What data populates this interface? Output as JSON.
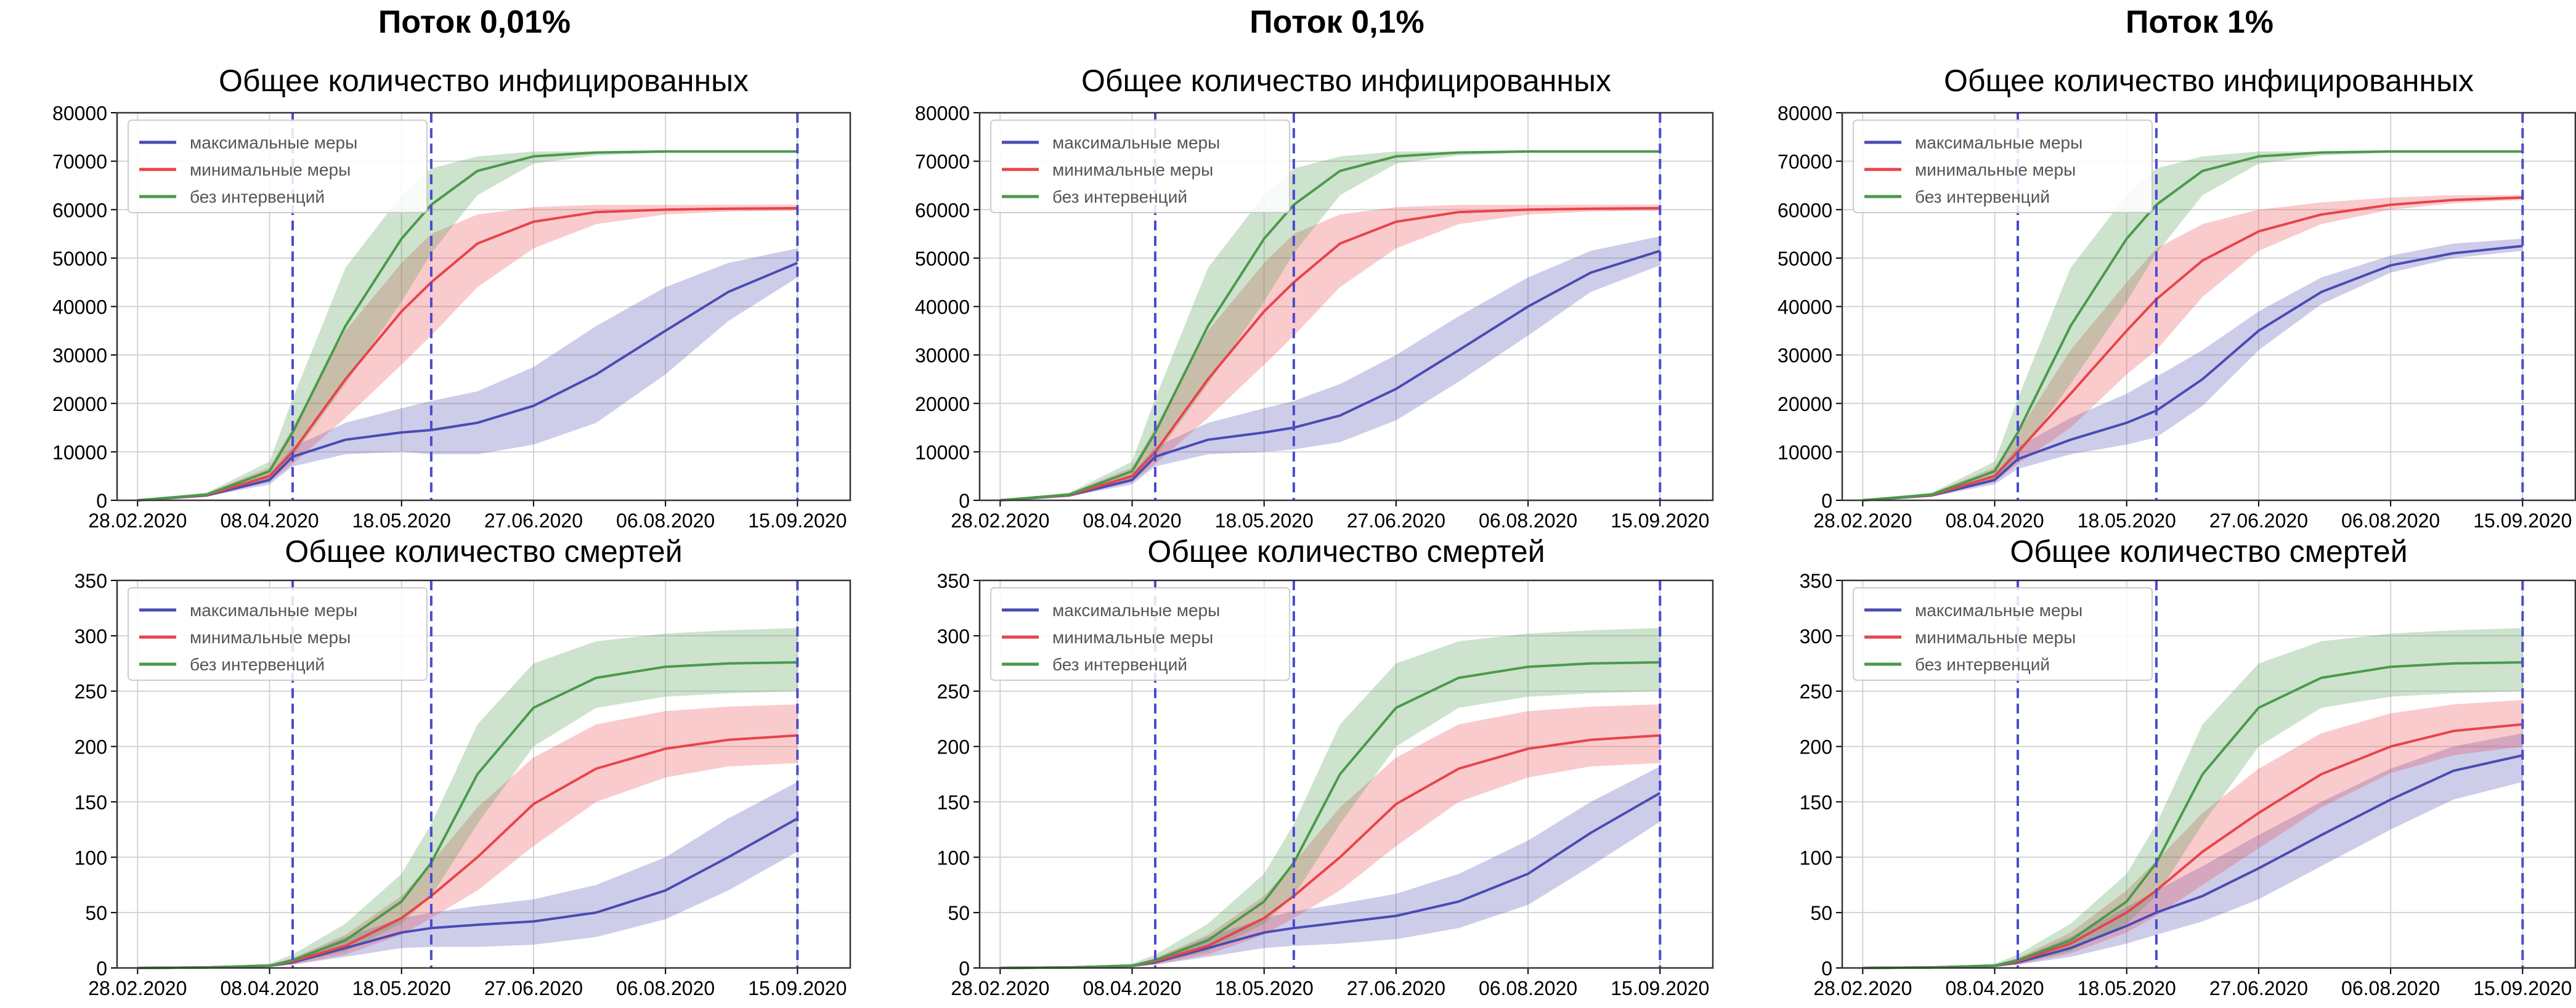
{
  "figure": {
    "columns": [
      "Поток 0,01%",
      "Поток 0,1%",
      "Поток 1%"
    ],
    "panel_titles": [
      "Общее количество инфицированных",
      "Общее количество смертей"
    ],
    "legend": [
      "максимальные меры",
      "минимальные меры",
      "без интервенций"
    ],
    "colors": {
      "max": "#4b4bb4",
      "min": "#e8434b",
      "none": "#4a9a4a",
      "vline": "#4b4bd0"
    },
    "x_ticks": [
      "28.02.2020",
      "08.04.2020",
      "18.05.2020",
      "27.06.2020",
      "06.08.2020",
      "15.09.2020"
    ],
    "x_dashed_lines": [
      "15.04.2020",
      "27.05.2020",
      "15.09.2020"
    ]
  },
  "chart_data": [
    {
      "type": "line",
      "column": "Поток 0,01%",
      "title": "Общее количество инфицированных",
      "ylim": [
        0,
        80000
      ],
      "y_ticks": [
        0,
        10000,
        20000,
        30000,
        40000,
        50000,
        60000,
        70000,
        80000
      ],
      "x": [
        "28.02.2020",
        "20.03.2020",
        "08.04.2020",
        "15.04.2020",
        "01.05.2020",
        "18.05.2020",
        "27.05.2020",
        "10.06.2020",
        "27.06.2020",
        "16.07.2020",
        "06.08.2020",
        "25.08.2020",
        "15.09.2020"
      ],
      "series": [
        {
          "name": "максимальные меры",
          "values": [
            0,
            1000,
            4200,
            9000,
            12500,
            14000,
            14500,
            16000,
            19500,
            26000,
            35000,
            43000,
            49000
          ],
          "lower": [
            0,
            800,
            3300,
            7000,
            9500,
            10000,
            9500,
            9500,
            11500,
            16000,
            26000,
            37000,
            46000
          ],
          "upper": [
            0,
            1300,
            5400,
            11000,
            16000,
            19000,
            20500,
            22500,
            27500,
            36000,
            44000,
            49000,
            52000
          ]
        },
        {
          "name": "минимальные меры",
          "values": [
            0,
            1100,
            5000,
            10000,
            25000,
            39000,
            45000,
            53000,
            57500,
            59500,
            60000,
            60200,
            60300
          ],
          "lower": [
            0,
            900,
            3800,
            7500,
            17000,
            28000,
            34000,
            44000,
            52000,
            57000,
            59000,
            59600,
            59800
          ],
          "upper": [
            0,
            1500,
            6800,
            15000,
            35000,
            49000,
            55000,
            59000,
            60500,
            61000,
            61000,
            61000,
            61000
          ]
        },
        {
          "name": "без интервенций",
          "values": [
            0,
            1200,
            6000,
            14000,
            36000,
            54000,
            61000,
            68000,
            71000,
            71800,
            72000,
            72000,
            72000
          ],
          "lower": [
            0,
            900,
            4200,
            9000,
            24000,
            41000,
            51000,
            63000,
            69500,
            71200,
            71800,
            71900,
            72000
          ],
          "upper": [
            0,
            1600,
            8000,
            21000,
            48000,
            63000,
            68500,
            71000,
            72000,
            72000,
            72000,
            72000,
            72000
          ]
        }
      ]
    },
    {
      "type": "line",
      "column": "Поток 0,1%",
      "title": "Общее количество инфицированных",
      "ylim": [
        0,
        80000
      ],
      "y_ticks": [
        0,
        10000,
        20000,
        30000,
        40000,
        50000,
        60000,
        70000,
        80000
      ],
      "x": [
        "28.02.2020",
        "20.03.2020",
        "08.04.2020",
        "15.04.2020",
        "01.05.2020",
        "18.05.2020",
        "27.05.2020",
        "10.06.2020",
        "27.06.2020",
        "16.07.2020",
        "06.08.2020",
        "25.08.2020",
        "15.09.2020"
      ],
      "series": [
        {
          "name": "максимальные меры",
          "values": [
            0,
            1000,
            4200,
            9000,
            12500,
            14000,
            15000,
            17500,
            23000,
            31000,
            40000,
            47000,
            51500
          ],
          "lower": [
            0,
            800,
            3300,
            7000,
            9500,
            10000,
            10500,
            12000,
            16500,
            24500,
            34000,
            43000,
            48500
          ],
          "upper": [
            0,
            1300,
            5400,
            11000,
            16000,
            19000,
            20500,
            24000,
            30000,
            38000,
            46000,
            51500,
            54500
          ]
        },
        {
          "name": "минимальные меры",
          "values": [
            0,
            1100,
            5000,
            10000,
            25000,
            39000,
            45000,
            53000,
            57500,
            59500,
            60000,
            60200,
            60300
          ],
          "lower": [
            0,
            900,
            3800,
            7500,
            17000,
            28000,
            34000,
            44000,
            52000,
            57000,
            59000,
            59600,
            59800
          ],
          "upper": [
            0,
            1500,
            6800,
            15000,
            35000,
            49000,
            55000,
            59000,
            60500,
            61000,
            61000,
            61000,
            61000
          ]
        },
        {
          "name": "без интервенций",
          "values": [
            0,
            1200,
            6000,
            14000,
            36000,
            54000,
            61000,
            68000,
            71000,
            71800,
            72000,
            72000,
            72000
          ],
          "lower": [
            0,
            900,
            4200,
            9000,
            24000,
            41000,
            51000,
            63000,
            69500,
            71200,
            71800,
            71900,
            72000
          ],
          "upper": [
            0,
            1600,
            8000,
            21000,
            48000,
            63000,
            68500,
            71000,
            72000,
            72000,
            72000,
            72000,
            72000
          ]
        }
      ]
    },
    {
      "type": "line",
      "column": "Поток 1%",
      "title": "Общее количество инфицированных",
      "ylim": [
        0,
        80000
      ],
      "y_ticks": [
        0,
        10000,
        20000,
        30000,
        40000,
        50000,
        60000,
        70000,
        80000
      ],
      "x": [
        "28.02.2020",
        "20.03.2020",
        "08.04.2020",
        "15.04.2020",
        "01.05.2020",
        "18.05.2020",
        "27.05.2020",
        "10.06.2020",
        "27.06.2020",
        "16.07.2020",
        "06.08.2020",
        "25.08.2020",
        "15.09.2020"
      ],
      "series": [
        {
          "name": "максимальные меры",
          "values": [
            0,
            1000,
            4200,
            8500,
            12500,
            16000,
            18500,
            25000,
            35000,
            43000,
            48500,
            51000,
            52500
          ],
          "lower": [
            0,
            800,
            3300,
            6500,
            9500,
            11500,
            13000,
            19500,
            31000,
            40500,
            47000,
            50000,
            51500
          ],
          "upper": [
            0,
            1300,
            5400,
            11000,
            17000,
            22000,
            25500,
            31000,
            39000,
            46000,
            50500,
            53000,
            54000
          ]
        },
        {
          "name": "минимальные меры",
          "values": [
            0,
            1100,
            5000,
            10000,
            22000,
            35000,
            41500,
            49500,
            55500,
            59000,
            61000,
            62000,
            62500
          ],
          "lower": [
            0,
            900,
            3800,
            7500,
            15000,
            26000,
            31000,
            42000,
            51500,
            57000,
            60000,
            61300,
            62000
          ],
          "upper": [
            0,
            1500,
            6800,
            14000,
            31000,
            45000,
            52000,
            57000,
            60000,
            61500,
            62500,
            63000,
            63000
          ]
        },
        {
          "name": "без интервенций",
          "values": [
            0,
            1200,
            6000,
            14000,
            36000,
            54000,
            61000,
            68000,
            71000,
            71800,
            72000,
            72000,
            72000
          ],
          "lower": [
            0,
            900,
            4200,
            9000,
            24000,
            41000,
            51000,
            63000,
            69500,
            71200,
            71800,
            71900,
            72000
          ],
          "upper": [
            0,
            1600,
            8000,
            21000,
            48000,
            63000,
            68500,
            71000,
            72000,
            72000,
            72000,
            72000,
            72000
          ]
        }
      ]
    },
    {
      "type": "line",
      "column": "Поток 0,01%",
      "title": "Общее количество смертей",
      "ylim": [
        0,
        350
      ],
      "y_ticks": [
        0,
        50,
        100,
        150,
        200,
        250,
        300,
        350
      ],
      "x": [
        "28.02.2020",
        "20.03.2020",
        "08.04.2020",
        "15.04.2020",
        "01.05.2020",
        "18.05.2020",
        "27.05.2020",
        "10.06.2020",
        "27.06.2020",
        "16.07.2020",
        "06.08.2020",
        "25.08.2020",
        "15.09.2020"
      ],
      "series": [
        {
          "name": "максимальные меры",
          "values": [
            0,
            0.5,
            2,
            5,
            18,
            32,
            36,
            39,
            42,
            50,
            70,
            100,
            135
          ],
          "lower": [
            0,
            0.3,
            1,
            3,
            10,
            18,
            19,
            19,
            21,
            28,
            44,
            70,
            105
          ],
          "upper": [
            0,
            0.8,
            3,
            8,
            28,
            45,
            50,
            56,
            62,
            75,
            100,
            135,
            168
          ]
        },
        {
          "name": "минимальные меры",
          "values": [
            0,
            0.5,
            2,
            6,
            20,
            45,
            65,
            100,
            148,
            180,
            198,
            206,
            210
          ],
          "lower": [
            0,
            0.3,
            1,
            3,
            12,
            30,
            45,
            70,
            110,
            150,
            172,
            182,
            185
          ],
          "upper": [
            0,
            0.8,
            3,
            9,
            30,
            65,
            95,
            145,
            190,
            220,
            232,
            236,
            238
          ]
        },
        {
          "name": "без интервенций",
          "values": [
            0,
            0.5,
            2,
            7,
            25,
            60,
            95,
            175,
            235,
            262,
            272,
            275,
            276
          ],
          "lower": [
            0,
            0.3,
            1,
            4,
            15,
            40,
            65,
            130,
            200,
            235,
            245,
            248,
            250
          ],
          "upper": [
            0,
            0.8,
            4,
            12,
            40,
            85,
            130,
            220,
            275,
            295,
            302,
            305,
            307
          ]
        }
      ]
    },
    {
      "type": "line",
      "column": "Поток 0,1%",
      "title": "Общее количество смертей",
      "ylim": [
        0,
        350
      ],
      "y_ticks": [
        0,
        50,
        100,
        150,
        200,
        250,
        300,
        350
      ],
      "x": [
        "28.02.2020",
        "20.03.2020",
        "08.04.2020",
        "15.04.2020",
        "01.05.2020",
        "18.05.2020",
        "27.05.2020",
        "10.06.2020",
        "27.06.2020",
        "16.07.2020",
        "06.08.2020",
        "25.08.2020",
        "15.09.2020"
      ],
      "series": [
        {
          "name": "максимальные меры",
          "values": [
            0,
            0.5,
            2,
            5,
            18,
            32,
            36,
            41,
            47,
            60,
            85,
            122,
            158
          ],
          "lower": [
            0,
            0.3,
            1,
            3,
            10,
            18,
            20,
            22,
            26,
            36,
            57,
            92,
            132
          ],
          "upper": [
            0,
            0.8,
            3,
            8,
            28,
            45,
            51,
            58,
            67,
            85,
            115,
            150,
            182
          ]
        },
        {
          "name": "минимальные меры",
          "values": [
            0,
            0.5,
            2,
            6,
            20,
            45,
            65,
            100,
            148,
            180,
            198,
            206,
            210
          ],
          "lower": [
            0,
            0.3,
            1,
            3,
            12,
            30,
            45,
            70,
            110,
            150,
            172,
            182,
            185
          ],
          "upper": [
            0,
            0.8,
            3,
            9,
            30,
            65,
            95,
            145,
            190,
            220,
            232,
            236,
            238
          ]
        },
        {
          "name": "без интервенций",
          "values": [
            0,
            0.5,
            2,
            7,
            25,
            60,
            95,
            175,
            235,
            262,
            272,
            275,
            276
          ],
          "lower": [
            0,
            0.3,
            1,
            4,
            15,
            40,
            65,
            130,
            200,
            235,
            245,
            248,
            250
          ],
          "upper": [
            0,
            0.8,
            4,
            12,
            40,
            85,
            130,
            220,
            275,
            295,
            302,
            305,
            307
          ]
        }
      ]
    },
    {
      "type": "line",
      "column": "Поток 1%",
      "title": "Общее количество смертей",
      "ylim": [
        0,
        350
      ],
      "y_ticks": [
        0,
        50,
        100,
        150,
        200,
        250,
        300,
        350
      ],
      "x": [
        "28.02.2020",
        "20.03.2020",
        "08.04.2020",
        "15.04.2020",
        "01.05.2020",
        "18.05.2020",
        "27.05.2020",
        "10.06.2020",
        "27.06.2020",
        "16.07.2020",
        "06.08.2020",
        "25.08.2020",
        "15.09.2020"
      ],
      "series": [
        {
          "name": "максимальные меры",
          "values": [
            0,
            0.5,
            2,
            5,
            18,
            38,
            50,
            65,
            90,
            120,
            152,
            178,
            192
          ],
          "lower": [
            0,
            0.3,
            1,
            3,
            10,
            22,
            30,
            42,
            62,
            92,
            125,
            152,
            168
          ],
          "upper": [
            0,
            0.8,
            3,
            8,
            28,
            55,
            70,
            92,
            120,
            150,
            180,
            200,
            212
          ]
        },
        {
          "name": "минимальные меры",
          "values": [
            0,
            0.5,
            2,
            6,
            22,
            50,
            70,
            105,
            140,
            175,
            200,
            214,
            220
          ],
          "lower": [
            0,
            0.3,
            1,
            3,
            13,
            32,
            47,
            75,
            108,
            145,
            176,
            192,
            200
          ],
          "upper": [
            0,
            0.8,
            3,
            9,
            32,
            70,
            97,
            140,
            180,
            212,
            230,
            238,
            242
          ]
        },
        {
          "name": "без интервенций",
          "values": [
            0,
            0.5,
            2,
            7,
            25,
            60,
            95,
            175,
            235,
            262,
            272,
            275,
            276
          ],
          "lower": [
            0,
            0.3,
            1,
            4,
            15,
            40,
            65,
            130,
            200,
            235,
            245,
            248,
            250
          ],
          "upper": [
            0,
            0.8,
            4,
            12,
            40,
            85,
            130,
            220,
            275,
            295,
            302,
            305,
            307
          ]
        }
      ]
    }
  ]
}
